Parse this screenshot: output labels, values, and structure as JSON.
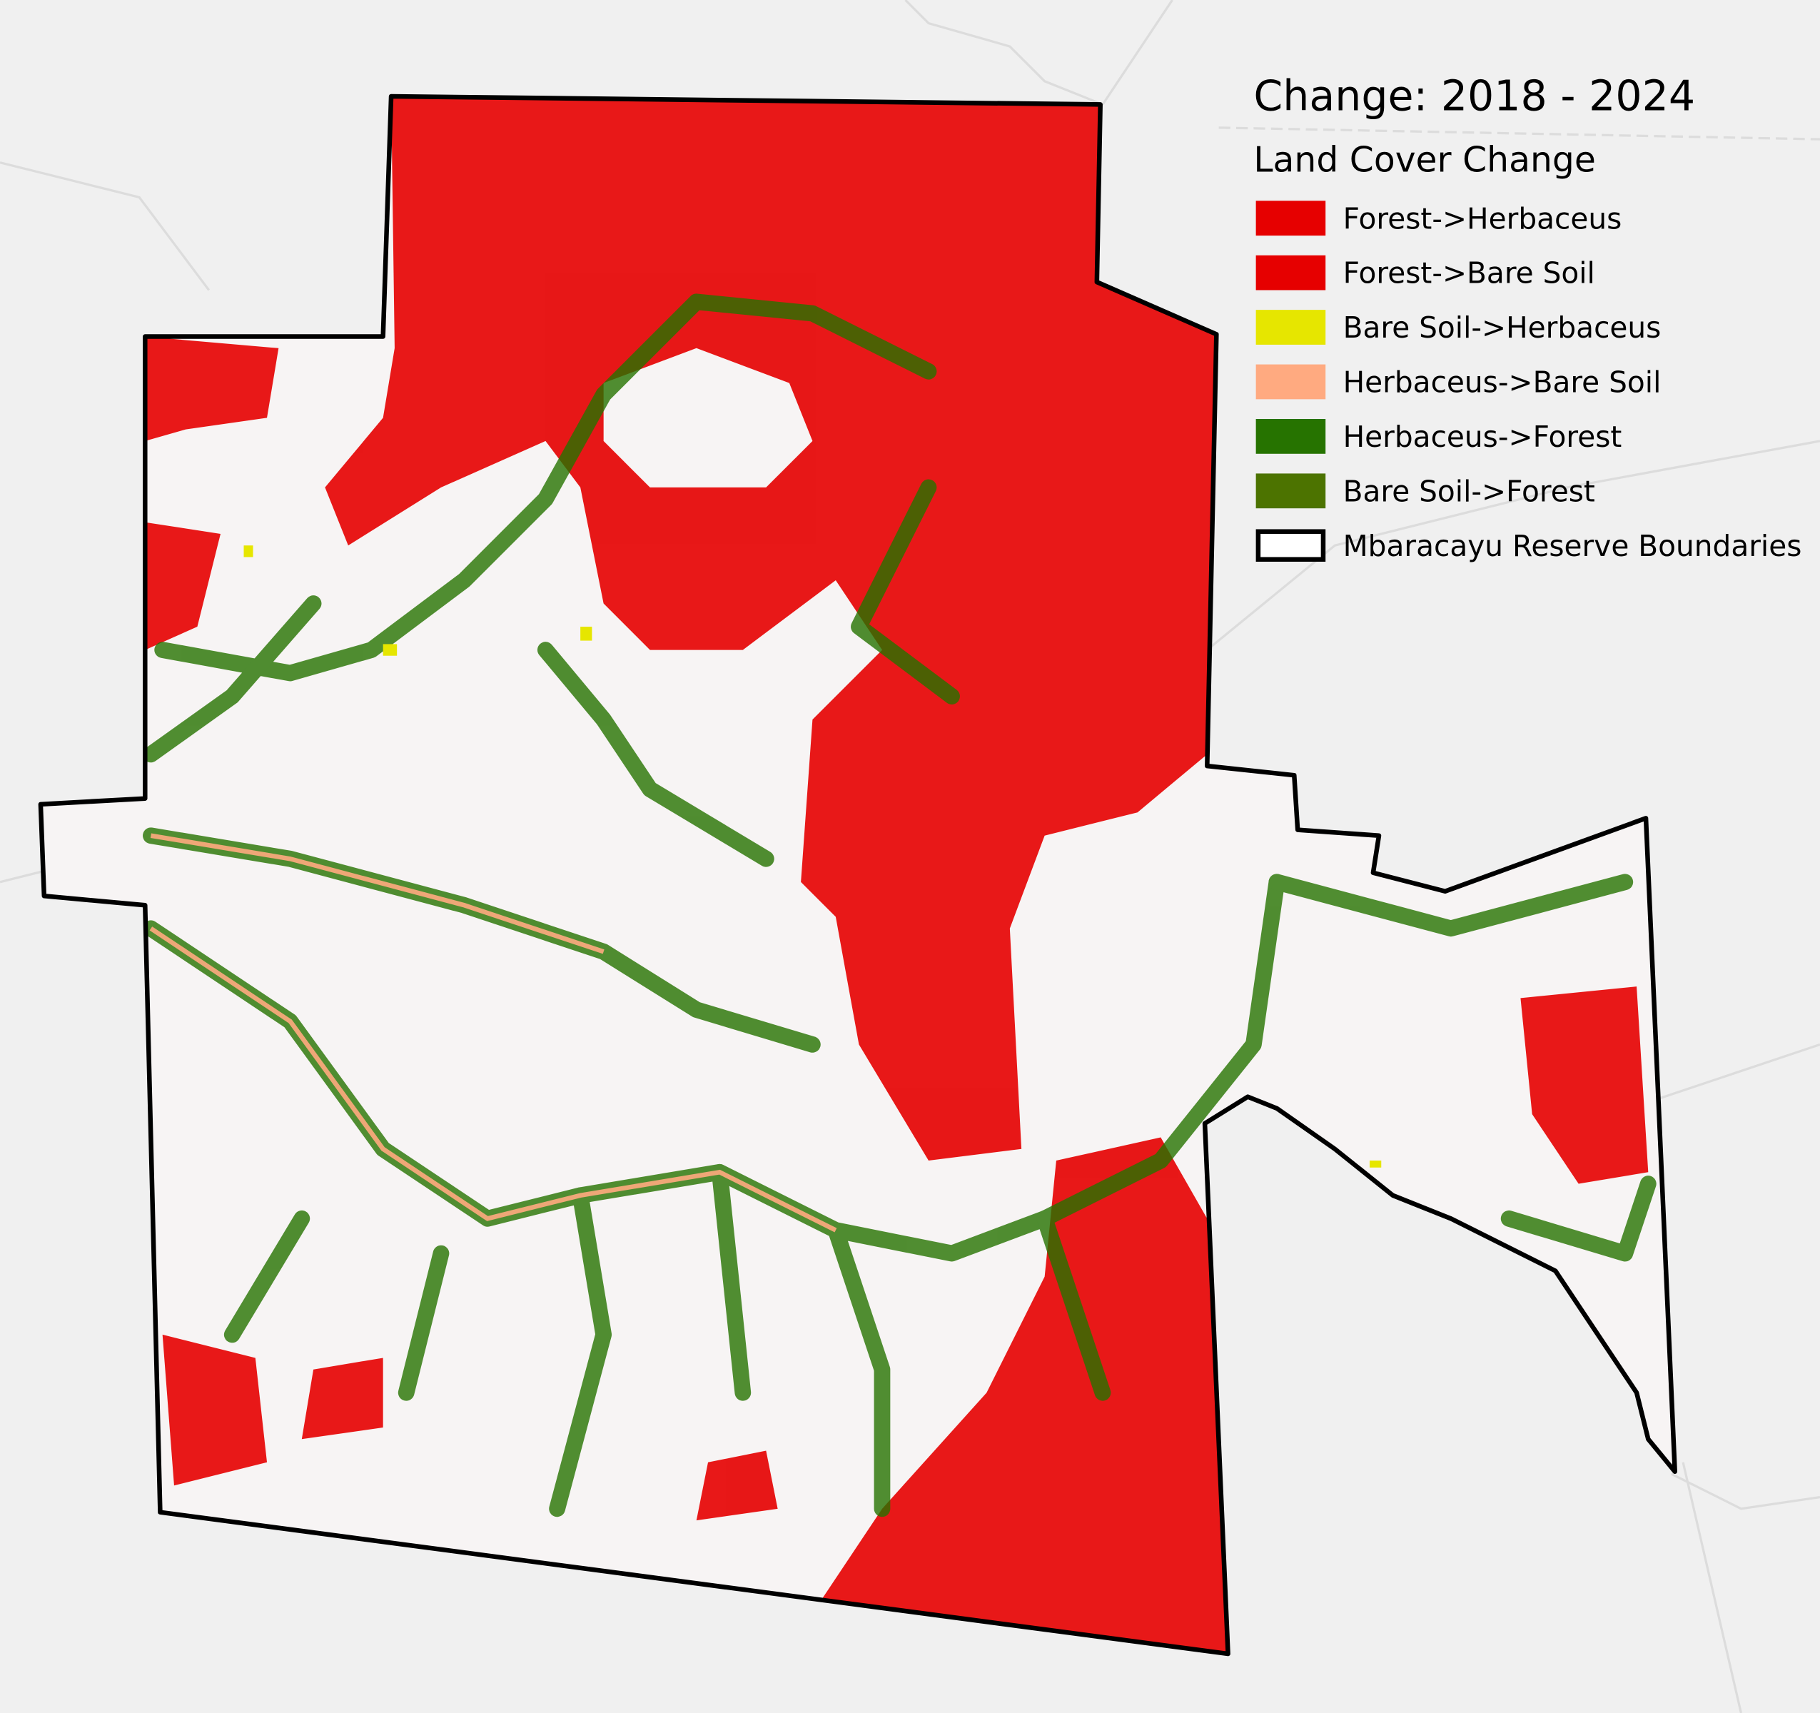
{
  "map": {
    "title": "Change: 2018 - 2024",
    "legend": {
      "title": "Land Cover Change",
      "items": [
        {
          "label": "Forest->Herbaceus",
          "color": "#e60000"
        },
        {
          "label": "Forest->Bare Soil",
          "color": "#e60000"
        },
        {
          "label": "Bare Soil->Herbaceus",
          "color": "#e6e600"
        },
        {
          "label": "Herbaceus->Bare Soil",
          "color": "#ffaa80"
        },
        {
          "label": "Herbaceus->Forest",
          "color": "#267300"
        },
        {
          "label": "Bare Soil->Forest",
          "color": "#4c7300"
        },
        {
          "label": "Mbaracayu Reserve Boundaries",
          "color": "#ffffff",
          "outline": "#000000"
        }
      ]
    }
  }
}
